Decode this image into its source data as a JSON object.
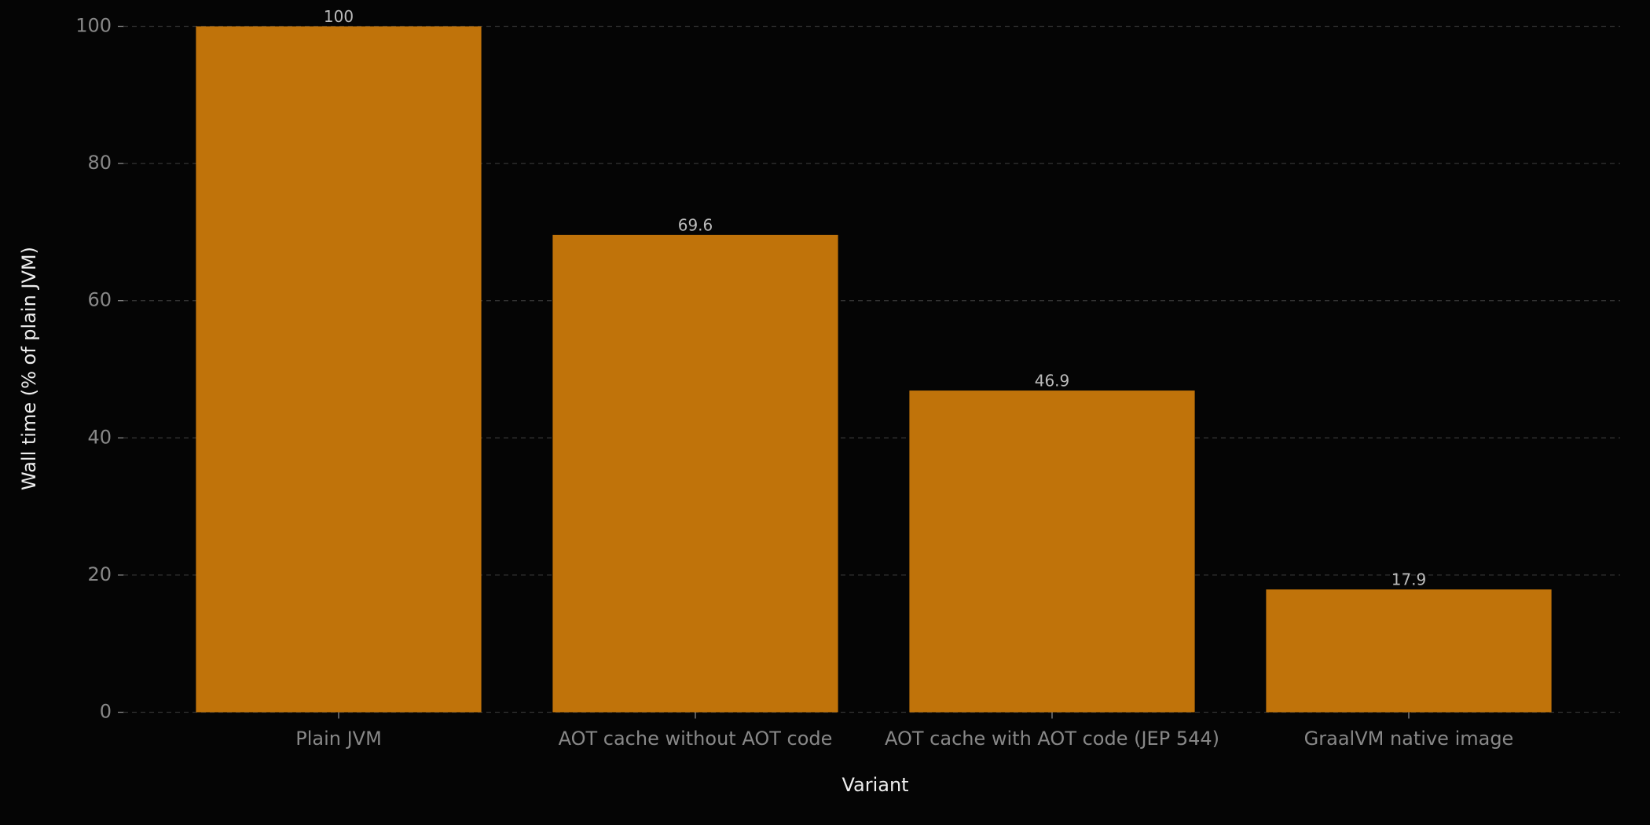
{
  "chart_data": {
    "type": "bar",
    "x_label": "Variant",
    "y_label": "Wall time (% of plain JVM)",
    "categories": [
      "Plain JVM",
      "AOT cache without AOT code",
      "AOT cache with AOT code (JEP 544)",
      "GraalVM native image"
    ],
    "values": [
      100,
      69.6,
      46.9,
      17.9
    ],
    "color": "#c0730a",
    "ylim": [
      0,
      100
    ],
    "yticks": [
      0,
      20,
      40,
      60,
      80,
      100
    ],
    "grid": true
  }
}
